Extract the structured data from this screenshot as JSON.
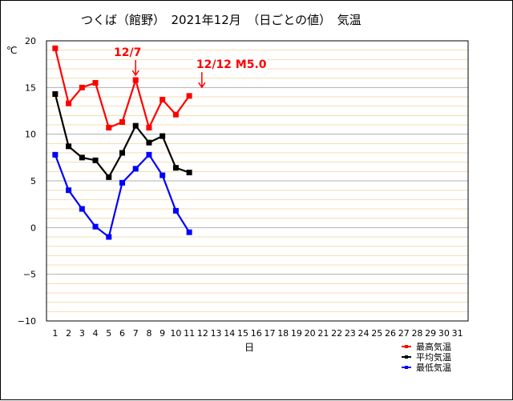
{
  "chart_data": {
    "type": "line",
    "title": "つくば（館野）　2021年12月　（日ごとの値）　気温",
    "xlabel": "日",
    "ylabel": "℃",
    "ylim": [
      -10,
      20
    ],
    "yticks": [
      20,
      15,
      10,
      5,
      0,
      -5,
      -10
    ],
    "x": [
      1,
      2,
      3,
      4,
      5,
      6,
      7,
      8,
      9,
      10,
      11,
      12,
      13,
      14,
      15,
      16,
      17,
      18,
      19,
      20,
      21,
      22,
      23,
      24,
      25,
      26,
      27,
      28,
      29,
      30,
      31
    ],
    "grid": true,
    "legend_position": "bottom-right",
    "series": [
      {
        "name": "最高気温",
        "color": "#ff0000",
        "x": [
          1,
          2,
          3,
          4,
          5,
          6,
          7,
          8,
          9,
          10,
          11
        ],
        "values": [
          19.2,
          13.3,
          15.0,
          15.5,
          10.7,
          11.3,
          15.8,
          10.7,
          13.7,
          12.1,
          14.1
        ]
      },
      {
        "name": "平均気温",
        "color": "#000000",
        "x": [
          1,
          2,
          3,
          4,
          5,
          6,
          7,
          8,
          9,
          10,
          11
        ],
        "values": [
          14.3,
          8.7,
          7.5,
          7.2,
          5.4,
          8.0,
          10.9,
          9.1,
          9.8,
          6.4,
          5.9
        ]
      },
      {
        "name": "最低気温",
        "color": "#0000ff",
        "x": [
          1,
          2,
          3,
          4,
          5,
          6,
          7,
          8,
          9,
          10,
          11
        ],
        "values": [
          7.8,
          4.0,
          2.0,
          0.1,
          -1.0,
          4.8,
          6.3,
          7.8,
          5.6,
          1.8,
          -0.5
        ]
      }
    ],
    "annotations": [
      {
        "text": "12/7",
        "color": "#ff0000",
        "x": 7,
        "y": 15.8
      },
      {
        "text": "12/12 M5.0",
        "color": "#ff0000",
        "x": 12,
        "y": 14.5
      }
    ]
  }
}
